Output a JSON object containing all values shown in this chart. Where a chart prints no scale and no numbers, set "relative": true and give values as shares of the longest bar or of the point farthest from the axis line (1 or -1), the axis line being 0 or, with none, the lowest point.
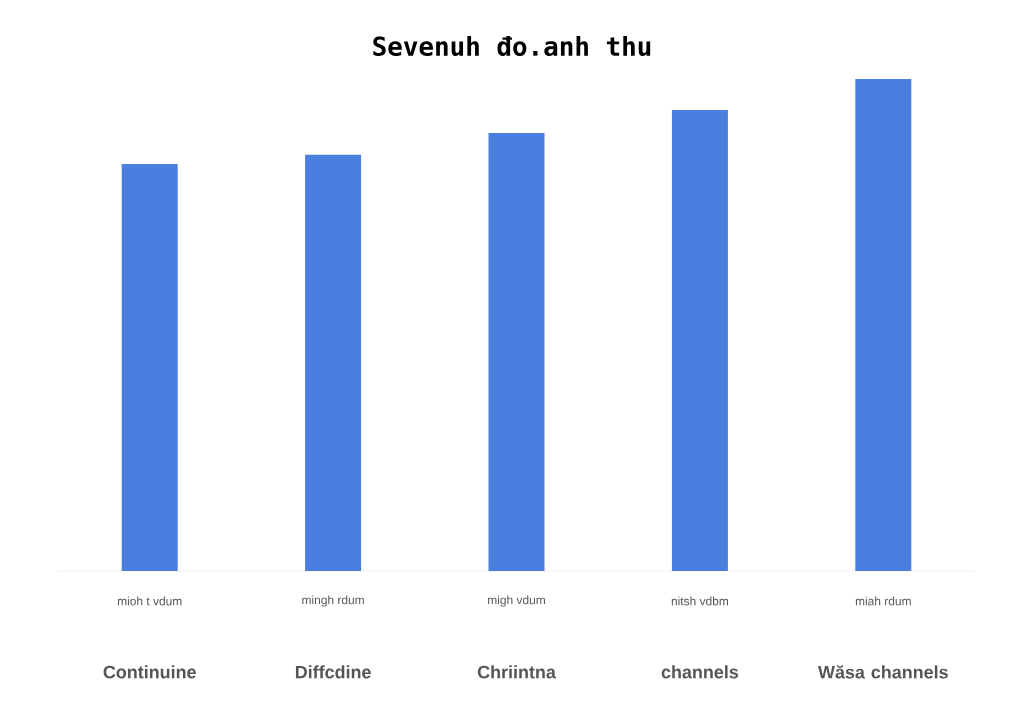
{
  "chart_data": {
    "type": "bar",
    "title": "Sevenuh đo.anh thu",
    "relative": true,
    "categories": [
      "Continuine",
      "Diffcdine",
      "Chriintna",
      "channels",
      "Wăsa channels"
    ],
    "values": [
      0.827,
      0.846,
      0.89,
      0.937,
      1
    ],
    "color": "#4a7fe0",
    "annotations": [
      "mioh t vdum",
      "mingh rdum",
      "migh vdum",
      "nitsh vdbm",
      "miah rdum"
    ]
  }
}
